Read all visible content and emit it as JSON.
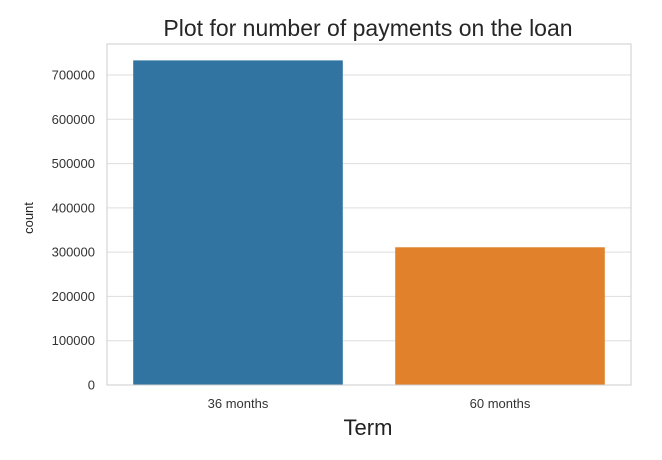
{
  "chart_data": {
    "type": "bar",
    "title": "Plot for number of payments on the loan",
    "xlabel": "Term",
    "ylabel": "count",
    "categories": [
      "36 months",
      "60 months"
    ],
    "values": [
      733000,
      311000
    ],
    "ylim": [
      0,
      770000
    ],
    "yticks": [
      0,
      100000,
      200000,
      300000,
      400000,
      500000,
      600000,
      700000
    ],
    "ytick_labels": [
      "0",
      "100000",
      "200000",
      "300000",
      "400000",
      "500000",
      "600000",
      "700000"
    ],
    "grid": true,
    "legend": "none",
    "colors": [
      "#3274a1",
      "#e1812c"
    ],
    "grid_color": "#dddddd",
    "frame_color": "#cccccc"
  }
}
